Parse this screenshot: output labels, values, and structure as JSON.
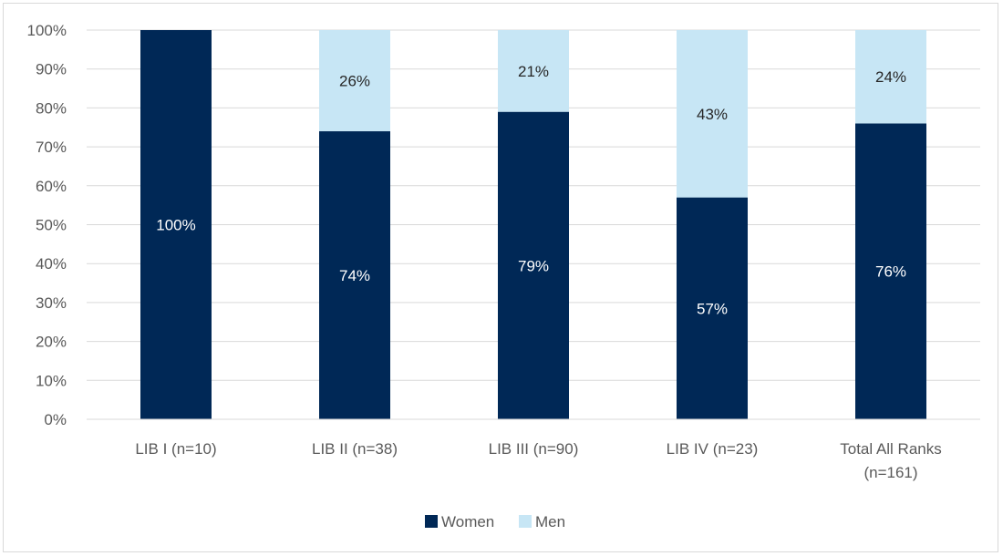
{
  "chart_data": {
    "type": "bar",
    "stacked": true,
    "categories": [
      [
        "LIB I (n=10)"
      ],
      [
        "LIB II (n=38)"
      ],
      [
        "LIB III (n=90)"
      ],
      [
        "LIB IV (n=23)"
      ],
      [
        "Total All Ranks",
        "(n=161)"
      ]
    ],
    "series": [
      {
        "name": "Women",
        "color": "#002856",
        "label_color": "#ffffff",
        "values": [
          100,
          74,
          79,
          57,
          76
        ],
        "labels": [
          "100%",
          "74%",
          "79%",
          "57%",
          "76%"
        ]
      },
      {
        "name": "Men",
        "color": "#c7e6f5",
        "label_color": "#262626",
        "values": [
          0,
          26,
          21,
          43,
          24
        ],
        "labels": [
          "",
          "26%",
          "21%",
          "43%",
          "24%"
        ]
      }
    ],
    "ylim": [
      0,
      100
    ],
    "yticks": [
      0,
      10,
      20,
      30,
      40,
      50,
      60,
      70,
      80,
      90,
      100
    ],
    "ytick_labels": [
      "0%",
      "10%",
      "20%",
      "30%",
      "40%",
      "50%",
      "60%",
      "70%",
      "80%",
      "90%",
      "100%"
    ],
    "grid": true,
    "legend_position": "bottom"
  }
}
